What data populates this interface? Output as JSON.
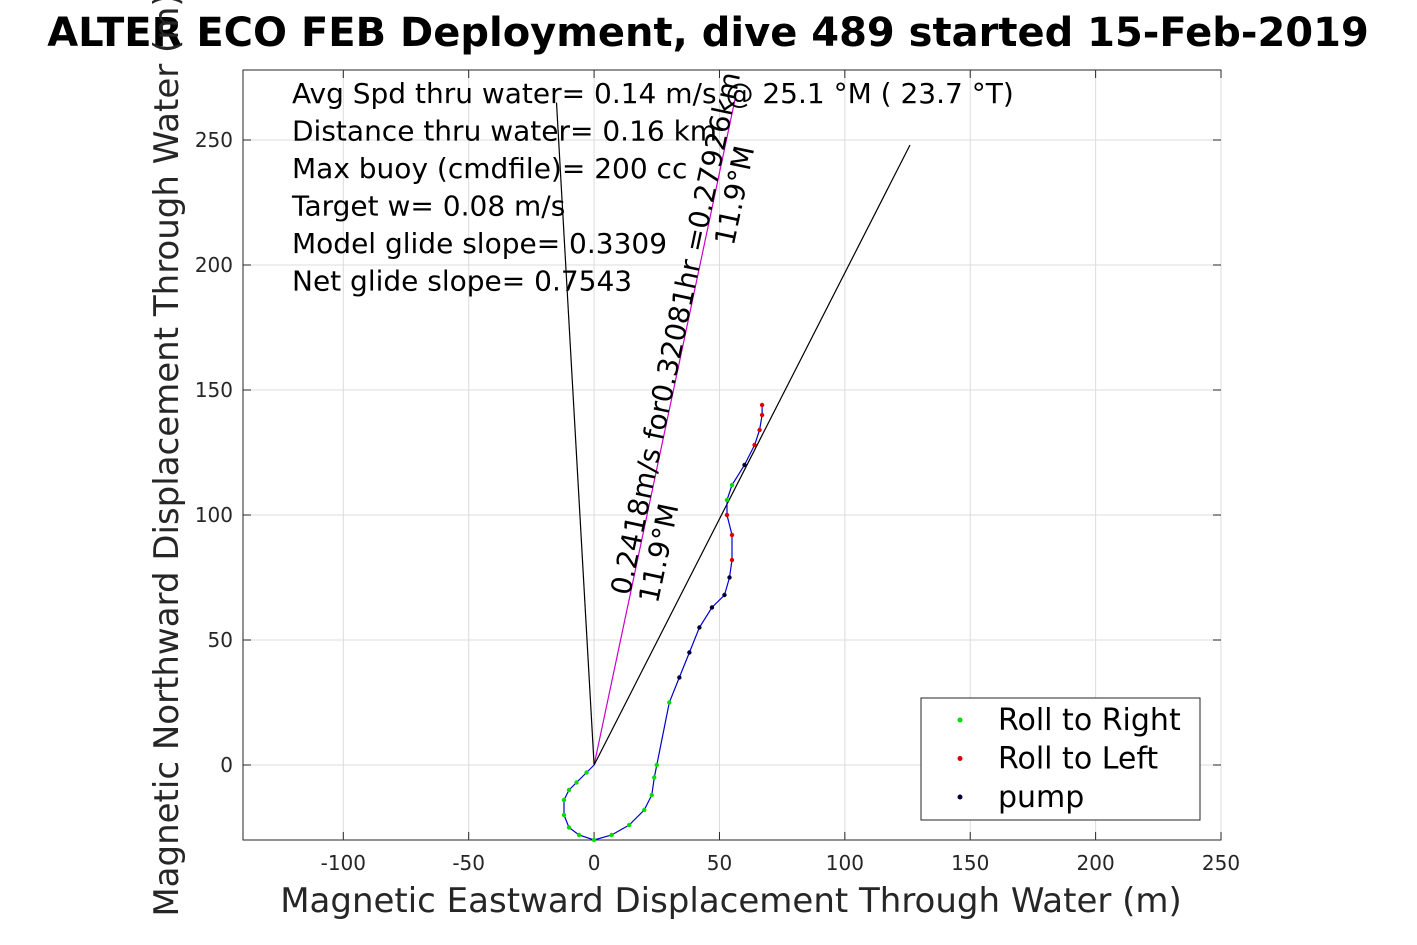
{
  "chart_data": {
    "type": "scatter",
    "title": "ALTER ECO FEB Deployment, dive 489 started 15-Feb-2019",
    "xlabel": "Magnetic Eastward Displacement Through Water (m)",
    "ylabel": "Magnetic Northward Displacement Through Water (m)",
    "xlim": [
      -140,
      250
    ],
    "ylim": [
      -30,
      278
    ],
    "xticks": [
      -100,
      -50,
      0,
      50,
      100,
      150,
      200,
      250
    ],
    "yticks": [
      0,
      50,
      100,
      150,
      200,
      250
    ],
    "grid": true,
    "legend_position": "bottom-right",
    "annotations": [
      "Avg Spd thru water=  0.14 m/s @  25.1 °M ( 23.7 °T)",
      "Distance thru water=  0.16 km",
      "Max buoy (cmdfile)= 200 cc",
      "Target w= 0.08 m/s",
      "Model glide slope= 0.3309",
      "Net glide slope= 0.7543"
    ],
    "current_label": "0.2418m/s for0.32081hr =0.27926km",
    "current_heading_label": "11.9°M",
    "current_heading_label_top": "11.9°M",
    "lines": [
      {
        "name": "current",
        "color": "#cc00cc",
        "points": [
          [
            0,
            0
          ],
          [
            57,
            270
          ]
        ]
      },
      {
        "name": "heading-ray",
        "color": "#000000",
        "points": [
          [
            0,
            0
          ],
          [
            -15,
            265
          ]
        ]
      },
      {
        "name": "course-ray",
        "color": "#000000",
        "points": [
          [
            0,
            0
          ],
          [
            126,
            248
          ]
        ]
      }
    ],
    "track": {
      "color": "#0000cc",
      "points": [
        [
          0,
          0
        ],
        [
          -3,
          -3
        ],
        [
          -7,
          -7
        ],
        [
          -10,
          -10
        ],
        [
          -12,
          -14
        ],
        [
          -12,
          -20
        ],
        [
          -10,
          -25
        ],
        [
          -6,
          -28
        ],
        [
          0,
          -30
        ],
        [
          7,
          -28
        ],
        [
          14,
          -24
        ],
        [
          20,
          -18
        ],
        [
          23,
          -12
        ],
        [
          24,
          -5
        ],
        [
          25,
          0
        ],
        [
          27,
          10
        ],
        [
          30,
          25
        ],
        [
          34,
          35
        ],
        [
          38,
          45
        ],
        [
          42,
          55
        ],
        [
          47,
          63
        ],
        [
          52,
          68
        ],
        [
          54,
          75
        ],
        [
          55,
          82
        ],
        [
          55,
          92
        ],
        [
          53,
          100
        ],
        [
          53,
          106
        ],
        [
          55,
          112
        ],
        [
          60,
          120
        ],
        [
          64,
          128
        ],
        [
          66,
          134
        ],
        [
          67,
          140
        ],
        [
          67,
          144
        ]
      ]
    },
    "series": [
      {
        "name": "Roll to Right",
        "color": "#00dd00",
        "indices": [
          1,
          2,
          3,
          4,
          5,
          6,
          7,
          8,
          9,
          10,
          11,
          12,
          13,
          14,
          16,
          26,
          27
        ]
      },
      {
        "name": "Roll to Left",
        "color": "#dd0000",
        "indices": [
          23,
          24,
          25,
          29,
          30,
          31,
          32
        ]
      },
      {
        "name": "pump",
        "color": "#000033",
        "indices": [
          17,
          18,
          19,
          20,
          21,
          22,
          28
        ]
      }
    ]
  }
}
